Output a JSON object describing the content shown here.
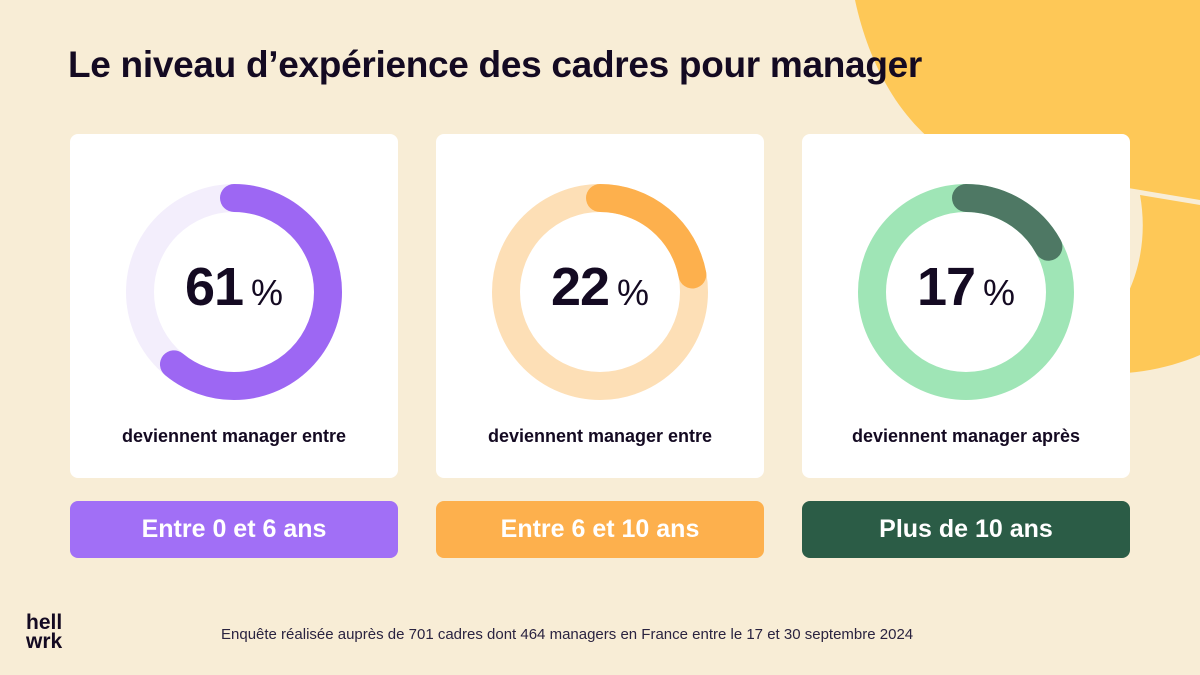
{
  "title": "Le niveau d’expérience des cadres pour manager",
  "chart_data": {
    "type": "pie",
    "charts": [
      {
        "value": 61,
        "value_label": "61",
        "unit": "%",
        "description": "deviennent manager entre",
        "category": "Entre 0 et 6 ans",
        "color": "#9d67f3",
        "track_color": "#f3eefc",
        "pill_color": "#a16ff6"
      },
      {
        "value": 22,
        "value_label": "22",
        "unit": "%",
        "description": "deviennent manager entre",
        "category": "Entre 6 et 10 ans",
        "color": "#fdb04d",
        "track_color": "#fddfb6",
        "pill_color": "#fdb04d"
      },
      {
        "value": 17,
        "value_label": "17",
        "unit": "%",
        "description": "deviennent manager après",
        "category": "Plus de 10 ans",
        "color": "#4e7864",
        "track_color": "#9fe5b6",
        "pill_color": "#2b5c46"
      }
    ]
  },
  "logo": {
    "line1": "hell",
    "line2": "wrk"
  },
  "footnote": "Enquête réalisée auprès de 701 cadres dont 464 managers en France entre le 17 et 30 septembre 2024",
  "colors": {
    "background": "#f8edd6",
    "decoration": "#fec857"
  }
}
